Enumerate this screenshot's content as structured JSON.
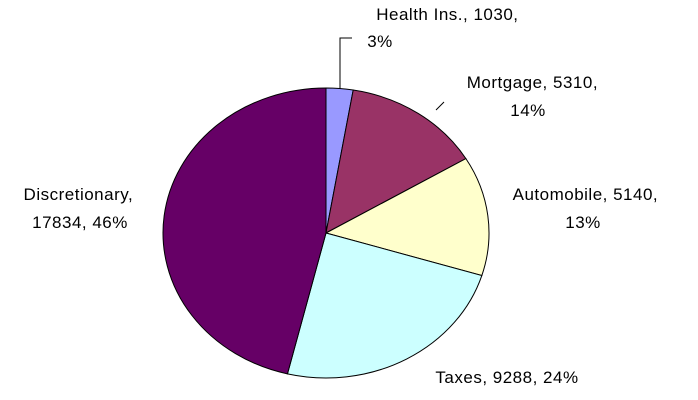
{
  "chart_data": {
    "type": "pie",
    "categories": [
      "Health Ins.",
      "Mortgage",
      "Automobile",
      "Taxes",
      "Discretionary"
    ],
    "values": [
      1030,
      5310,
      5140,
      9288,
      17834
    ],
    "value_labels": [
      "Health Ins., 1030, 3%",
      "Mortgage, 5310, 14%",
      "Automobile, 5140, 13%",
      "Taxes, 9288, 24%",
      "Discretionary, 17834, 46%"
    ],
    "colors": [
      "#9999ff",
      "#993366",
      "#ffffcc",
      "#ccffff",
      "#660066"
    ]
  }
}
